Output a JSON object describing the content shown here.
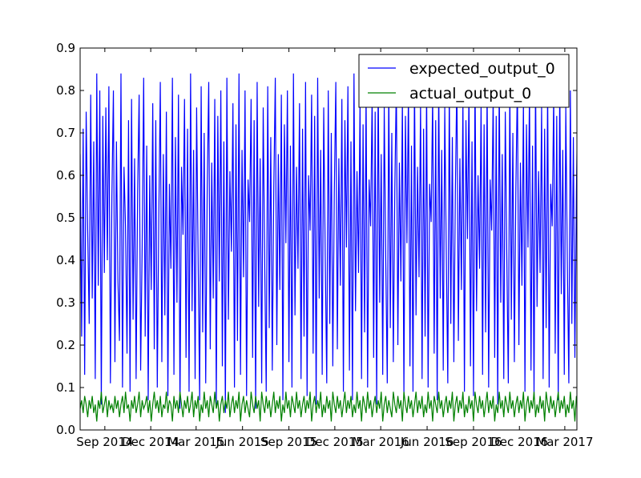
{
  "chart_data": {
    "type": "line",
    "title": "",
    "xlabel": "",
    "ylabel": "",
    "x_range": [
      "2014-07-14",
      "2017-03-25"
    ],
    "ylim": [
      0.0,
      0.9
    ],
    "yticks": [
      "0.0",
      "0.1",
      "0.2",
      "0.3",
      "0.4",
      "0.5",
      "0.6",
      "0.7",
      "0.8",
      "0.9"
    ],
    "xticks": [
      {
        "label": "Sep 2014",
        "date": "2014-09-01"
      },
      {
        "label": "Dec 2014",
        "date": "2014-12-01"
      },
      {
        "label": "Mar 2015",
        "date": "2015-03-01"
      },
      {
        "label": "Jun 2015",
        "date": "2015-06-01"
      },
      {
        "label": "Sep 2015",
        "date": "2015-09-01"
      },
      {
        "label": "Dec 2015",
        "date": "2015-12-01"
      },
      {
        "label": "Mar 2016",
        "date": "2016-03-01"
      },
      {
        "label": "Jun 2016",
        "date": "2016-06-01"
      },
      {
        "label": "Sep 2016",
        "date": "2016-09-01"
      },
      {
        "label": "Dec 2016",
        "date": "2016-12-01"
      },
      {
        "label": "Mar 2017",
        "date": "2017-03-01"
      }
    ],
    "grid": false,
    "legend_position": "top-right",
    "series": [
      {
        "name": "expected_output_0",
        "color": "#0000ff",
        "start_date": "2014-07-14",
        "step_days": 3,
        "values": [
          0.65,
          0.22,
          0.71,
          0.13,
          0.75,
          0.47,
          0.25,
          0.79,
          0.31,
          0.68,
          0.12,
          0.84,
          0.34,
          0.8,
          0.06,
          0.74,
          0.37,
          0.76,
          0.4,
          0.81,
          0.11,
          0.55,
          0.8,
          0.16,
          0.68,
          0.35,
          0.21,
          0.84,
          0.1,
          0.62,
          0.48,
          0.18,
          0.73,
          0.09,
          0.78,
          0.26,
          0.64,
          0.12,
          0.56,
          0.79,
          0.14,
          0.43,
          0.83,
          0.22,
          0.67,
          0.07,
          0.6,
          0.33,
          0.77,
          0.19,
          0.73,
          0.1,
          0.5,
          0.82,
          0.16,
          0.65,
          0.27,
          0.75,
          0.08,
          0.58,
          0.38,
          0.83,
          0.13,
          0.69,
          0.3,
          0.79,
          0.05,
          0.62,
          0.46,
          0.78,
          0.17,
          0.71,
          0.09,
          0.84,
          0.28,
          0.66,
          0.12,
          0.76,
          0.4,
          0.07,
          0.81,
          0.23,
          0.7,
          0.11,
          0.57,
          0.82,
          0.19,
          0.63,
          0.31,
          0.78,
          0.06,
          0.74,
          0.35,
          0.8,
          0.15,
          0.68,
          0.04,
          0.83,
          0.26,
          0.61,
          0.42,
          0.77,
          0.1,
          0.72,
          0.21,
          0.84,
          0.13,
          0.66,
          0.36,
          0.8,
          0.08,
          0.59,
          0.49,
          0.78,
          0.17,
          0.73,
          0.05,
          0.82,
          0.29,
          0.64,
          0.11,
          0.76,
          0.39,
          0.09,
          0.81,
          0.24,
          0.69,
          0.14,
          0.57,
          0.83,
          0.2,
          0.65,
          0.33,
          0.79,
          0.07,
          0.72,
          0.44,
          0.8,
          0.16,
          0.67,
          0.1,
          0.84,
          0.27,
          0.62,
          0.38,
          0.77,
          0.12,
          0.71,
          0.22,
          0.82,
          0.08,
          0.6,
          0.47,
          0.79,
          0.18,
          0.74,
          0.06,
          0.83,
          0.31,
          0.66,
          0.13,
          0.76,
          0.41,
          0.11,
          0.8,
          0.25,
          0.7,
          0.15,
          0.56,
          0.82,
          0.19,
          0.64,
          0.34,
          0.78,
          0.09,
          0.73,
          0.43,
          0.81,
          0.14,
          0.68,
          0.07,
          0.84,
          0.28,
          0.61,
          0.37,
          0.77,
          0.12,
          0.72,
          0.23,
          0.8,
          0.1,
          0.59,
          0.48,
          0.79,
          0.17,
          0.75,
          0.06,
          0.83,
          0.3,
          0.65,
          0.13,
          0.76,
          0.4,
          0.11,
          0.81,
          0.24,
          0.7,
          0.16,
          0.57,
          0.82,
          0.2,
          0.63,
          0.35,
          0.78,
          0.08,
          0.74,
          0.44,
          0.8,
          0.15,
          0.67,
          0.09,
          0.83,
          0.27,
          0.62,
          0.36,
          0.77,
          0.12,
          0.71,
          0.22,
          0.81,
          0.1,
          0.58,
          0.49,
          0.79,
          0.18,
          0.73,
          0.07,
          0.82,
          0.31,
          0.66,
          0.14,
          0.76,
          0.42,
          0.11,
          0.8,
          0.25,
          0.69,
          0.16,
          0.56,
          0.83,
          0.21,
          0.64,
          0.33,
          0.78,
          0.09,
          0.73,
          0.45,
          0.8,
          0.15,
          0.68,
          0.08,
          0.84,
          0.28,
          0.6,
          0.38,
          0.77,
          0.13,
          0.72,
          0.23,
          0.81,
          0.1,
          0.59,
          0.47,
          0.79,
          0.17,
          0.74,
          0.06,
          0.83,
          0.3,
          0.65,
          0.12,
          0.75,
          0.41,
          0.11,
          0.81,
          0.26,
          0.7,
          0.16,
          0.57,
          0.82,
          0.2,
          0.63,
          0.34,
          0.78,
          0.09,
          0.72,
          0.43,
          0.8,
          0.14,
          0.67,
          0.08,
          0.83,
          0.29,
          0.61,
          0.37,
          0.76,
          0.12,
          0.71,
          0.24,
          0.81,
          0.1,
          0.58,
          0.48,
          0.79,
          0.18,
          0.74,
          0.07,
          0.82,
          0.32,
          0.66,
          0.13,
          0.76,
          0.4,
          0.11,
          0.8,
          0.25,
          0.69,
          0.17,
          0.56,
          0.82,
          0.21,
          0.64,
          0.35,
          0.78,
          0.09,
          0.73,
          0.44,
          0.8,
          0.15,
          0.68,
          0.08,
          0.84,
          0.27,
          0.62,
          0.38,
          0.77,
          0.13,
          0.72,
          0.22,
          0.81,
          0.11,
          0.59,
          0.49,
          0.79,
          0.17,
          0.74,
          0.1,
          0.69,
          0.3,
          0.75,
          0.45,
          0.12,
          0.71,
          0.74,
          0.29,
          0.6,
          0.65,
          0.11,
          0.25
        ]
      },
      {
        "name": "actual_output_0",
        "color": "#008000",
        "start_date": "2014-07-14",
        "step_days": 3,
        "values": [
          0.05,
          0.07,
          0.04,
          0.08,
          0.06,
          0.03,
          0.07,
          0.05,
          0.08,
          0.04,
          0.06,
          0.02,
          0.07,
          0.05,
          0.09,
          0.04,
          0.06,
          0.08,
          0.03,
          0.07,
          0.05,
          0.06,
          0.04,
          0.08,
          0.05,
          0.07,
          0.03,
          0.06,
          0.08,
          0.04,
          0.09,
          0.05,
          0.06,
          0.02,
          0.07,
          0.05,
          0.08,
          0.04,
          0.06,
          0.09,
          0.03,
          0.07,
          0.05,
          0.06,
          0.08,
          0.04,
          0.07,
          0.02,
          0.06,
          0.09,
          0.05,
          0.07,
          0.04,
          0.08,
          0.03,
          0.06,
          0.05,
          0.09,
          0.04,
          0.07,
          0.06,
          0.02,
          0.08,
          0.05,
          0.07,
          0.04,
          0.09,
          0.06,
          0.03,
          0.07,
          0.05,
          0.08,
          0.04,
          0.06,
          0.09,
          0.03,
          0.07,
          0.05,
          0.08,
          0.02,
          0.06,
          0.04,
          0.09,
          0.05,
          0.07,
          0.03,
          0.08,
          0.06,
          0.04,
          0.09,
          0.05,
          0.07,
          0.02,
          0.06,
          0.08,
          0.04,
          0.07,
          0.05,
          0.09,
          0.03,
          0.06,
          0.08,
          0.04,
          0.07,
          0.05,
          0.09,
          0.02,
          0.06,
          0.08,
          0.04,
          0.07,
          0.05,
          0.03,
          0.09,
          0.06,
          0.04,
          0.08,
          0.05,
          0.07,
          0.02,
          0.09,
          0.06,
          0.04,
          0.08,
          0.05,
          0.07,
          0.03,
          0.06,
          0.09,
          0.04,
          0.07,
          0.05,
          0.08,
          0.02,
          0.06,
          0.04,
          0.09,
          0.05,
          0.07,
          0.03,
          0.08,
          0.06,
          0.04,
          0.09,
          0.05,
          0.07,
          0.03,
          0.06,
          0.08,
          0.04,
          0.07,
          0.05,
          0.09,
          0.02,
          0.06,
          0.08,
          0.04,
          0.07,
          0.05,
          0.09,
          0.03,
          0.06,
          0.04,
          0.08,
          0.05,
          0.07,
          0.02,
          0.09,
          0.06,
          0.04,
          0.08,
          0.05,
          0.07,
          0.03,
          0.06,
          0.09,
          0.04,
          0.07,
          0.05,
          0.08,
          0.03,
          0.06,
          0.04,
          0.09,
          0.05,
          0.07,
          0.02,
          0.08,
          0.06,
          0.04,
          0.09,
          0.05,
          0.07,
          0.03,
          0.06,
          0.08,
          0.04,
          0.07,
          0.05,
          0.09,
          0.02,
          0.06,
          0.08,
          0.04,
          0.07,
          0.05,
          0.03,
          0.09,
          0.06,
          0.04,
          0.08,
          0.05,
          0.07,
          0.02,
          0.09,
          0.06,
          0.04,
          0.08,
          0.05,
          0.07,
          0.03,
          0.06,
          0.09,
          0.04,
          0.07,
          0.05,
          0.08,
          0.03,
          0.06,
          0.04,
          0.09,
          0.05,
          0.07,
          0.02,
          0.08,
          0.06,
          0.04,
          0.09,
          0.05,
          0.07,
          0.03,
          0.06,
          0.08,
          0.04,
          0.07,
          0.05,
          0.09,
          0.02,
          0.06,
          0.08,
          0.04,
          0.07,
          0.05,
          0.09,
          0.03,
          0.06,
          0.04,
          0.08,
          0.05,
          0.07,
          0.02,
          0.09,
          0.06,
          0.04,
          0.08,
          0.05,
          0.07,
          0.03,
          0.06,
          0.09,
          0.04,
          0.07,
          0.05,
          0.08,
          0.02,
          0.06,
          0.04,
          0.09,
          0.05,
          0.07,
          0.03,
          0.08,
          0.06,
          0.04,
          0.09,
          0.05,
          0.07,
          0.03,
          0.06,
          0.08,
          0.04,
          0.07,
          0.05,
          0.09,
          0.02,
          0.06,
          0.08,
          0.04,
          0.07,
          0.05,
          0.09,
          0.03,
          0.06,
          0.04,
          0.08,
          0.05,
          0.07,
          0.02,
          0.09,
          0.06,
          0.04,
          0.08,
          0.05,
          0.07,
          0.03,
          0.06,
          0.09,
          0.04,
          0.07,
          0.05,
          0.08,
          0.03,
          0.06,
          0.04,
          0.09,
          0.05,
          0.07,
          0.02,
          0.08,
          0.06,
          0.04,
          0.09,
          0.05,
          0.07,
          0.03,
          0.06,
          0.08,
          0.04,
          0.07,
          0.05,
          0.09,
          0.02,
          0.06,
          0.08,
          0.04,
          0.07,
          0.05,
          0.03,
          0.09,
          0.06,
          0.04,
          0.08,
          0.05,
          0.07,
          0.02,
          0.09,
          0.06,
          0.04,
          0.08,
          0.05,
          0.07,
          0.03,
          0.06,
          0.09,
          0.04,
          0.07,
          0.05,
          0.08,
          0.02,
          0.06,
          0.04,
          0.09,
          0.05,
          0.07,
          0.03,
          0.08,
          0.06,
          0.04,
          0.09,
          0.05,
          0.07,
          0.03,
          0.06,
          0.08,
          0.05,
          0.07,
          0.04,
          0.09
        ]
      }
    ]
  }
}
